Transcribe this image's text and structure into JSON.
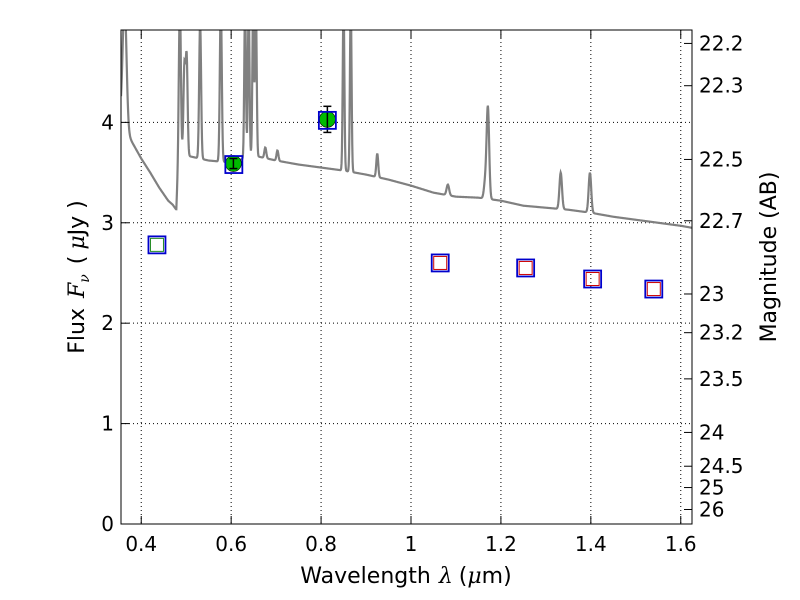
{
  "chart_data": {
    "type": "scatter",
    "xlabel_prefix": "Wavelength",
    "xlabel_symbol": "λ",
    "xlabel_unit_open": "(",
    "xlabel_unit_mu": "μ",
    "xlabel_unit_rest": "m)",
    "ylabel_prefix": "Flux",
    "ylabel_symbol": "F",
    "ylabel_symbol_sub": "ν",
    "ylabel_unit_open": "(",
    "ylabel_unit_mu": "μ",
    "ylabel_unit_rest": "Jy )",
    "y2label": "Magnitude (AB)",
    "xlim": [
      0.355,
      1.625
    ],
    "ylim": [
      0,
      4.92
    ],
    "grid": true,
    "x_ticks": [
      {
        "v": 0.4,
        "label": "0.4"
      },
      {
        "v": 0.6,
        "label": "0.6"
      },
      {
        "v": 0.8,
        "label": "0.8"
      },
      {
        "v": 1.0,
        "label": "1"
      },
      {
        "v": 1.2,
        "label": "1.2"
      },
      {
        "v": 1.4,
        "label": "1.4"
      },
      {
        "v": 1.6,
        "label": "1.6"
      }
    ],
    "y_ticks": [
      {
        "v": 0,
        "label": "0"
      },
      {
        "v": 1,
        "label": "1"
      },
      {
        "v": 2,
        "label": "2"
      },
      {
        "v": 3,
        "label": "3"
      },
      {
        "v": 4,
        "label": "4"
      }
    ],
    "mag_ticks": [
      {
        "v": 22.2,
        "label": "22.2"
      },
      {
        "v": 22.3,
        "label": "22.3"
      },
      {
        "v": 22.5,
        "label": "22.5"
      },
      {
        "v": 22.7,
        "label": "22.7"
      },
      {
        "v": 23.0,
        "label": "23"
      },
      {
        "v": 23.2,
        "label": "23.2"
      },
      {
        "v": 23.5,
        "label": "23.5"
      },
      {
        "v": 24.0,
        "label": "24"
      },
      {
        "v": 24.5,
        "label": "24.5"
      },
      {
        "v": 25.0,
        "label": "25"
      },
      {
        "v": 26.0,
        "label": "26"
      }
    ],
    "observed": [
      {
        "x": 0.605,
        "y": 3.59,
        "err": 0.05
      },
      {
        "x": 0.814,
        "y": 4.03,
        "err": 0.13
      }
    ],
    "model_photometry": [
      {
        "x": 0.435,
        "y": 2.78
      },
      {
        "x": 0.606,
        "y": 3.58
      },
      {
        "x": 0.814,
        "y": 4.02
      },
      {
        "x": 1.065,
        "y": 2.6
      },
      {
        "x": 1.255,
        "y": 2.55
      },
      {
        "x": 1.404,
        "y": 2.44
      },
      {
        "x": 1.54,
        "y": 2.34
      }
    ],
    "other_bands": [
      {
        "x": 0.435,
        "y": 2.78,
        "kind": "green"
      },
      {
        "x": 1.065,
        "y": 2.6,
        "kind": "red"
      },
      {
        "x": 1.255,
        "y": 2.55,
        "kind": "red"
      },
      {
        "x": 1.404,
        "y": 2.44,
        "kind": "red"
      },
      {
        "x": 1.54,
        "y": 2.34,
        "kind": "red"
      }
    ],
    "spectrum_continuum": [
      [
        0.355,
        4.05
      ],
      [
        0.363,
        3.95
      ],
      [
        0.38,
        3.8
      ],
      [
        0.4,
        3.64
      ],
      [
        0.42,
        3.5
      ],
      [
        0.44,
        3.35
      ],
      [
        0.46,
        3.22
      ],
      [
        0.47,
        3.18
      ],
      [
        0.478,
        3.13
      ],
      [
        0.483,
        3.7
      ],
      [
        0.5,
        3.67
      ],
      [
        0.55,
        3.62
      ],
      [
        0.6,
        3.6
      ],
      [
        0.65,
        3.67
      ],
      [
        0.7,
        3.62
      ],
      [
        0.75,
        3.58
      ],
      [
        0.8,
        3.55
      ],
      [
        0.85,
        3.52
      ],
      [
        0.9,
        3.48
      ],
      [
        0.95,
        3.43
      ],
      [
        1.0,
        3.37
      ],
      [
        1.05,
        3.3
      ],
      [
        1.1,
        3.26
      ],
      [
        1.15,
        3.25
      ],
      [
        1.2,
        3.22
      ],
      [
        1.25,
        3.17
      ],
      [
        1.3,
        3.15
      ],
      [
        1.35,
        3.13
      ],
      [
        1.4,
        3.1
      ],
      [
        1.45,
        3.06
      ],
      [
        1.5,
        3.03
      ],
      [
        1.55,
        3.0
      ],
      [
        1.6,
        2.97
      ],
      [
        1.625,
        2.95
      ]
    ],
    "spectrum_lines": [
      {
        "x": 0.363,
        "peak": 5.2,
        "w": 0.006
      },
      {
        "x": 0.486,
        "peak": 5.2,
        "w": 0.003
      },
      {
        "x": 0.496,
        "peak": 4.55,
        "w": 0.003
      },
      {
        "x": 0.501,
        "peak": 4.65,
        "w": 0.003
      },
      {
        "x": 0.531,
        "peak": 5.0,
        "w": 0.003
      },
      {
        "x": 0.577,
        "peak": 5.2,
        "w": 0.003
      },
      {
        "x": 0.631,
        "peak": 5.2,
        "w": 0.0025
      },
      {
        "x": 0.639,
        "peak": 5.2,
        "w": 0.0025
      },
      {
        "x": 0.649,
        "peak": 5.2,
        "w": 0.0025
      },
      {
        "x": 0.655,
        "peak": 5.2,
        "w": 0.0025
      },
      {
        "x": 0.676,
        "peak": 3.75,
        "w": 0.003
      },
      {
        "x": 0.703,
        "peak": 3.72,
        "w": 0.003
      },
      {
        "x": 0.85,
        "peak": 5.2,
        "w": 0.0025
      },
      {
        "x": 0.866,
        "peak": 5.2,
        "w": 0.0025
      },
      {
        "x": 0.925,
        "peak": 3.69,
        "w": 0.003
      },
      {
        "x": 1.082,
        "peak": 3.38,
        "w": 0.004
      },
      {
        "x": 1.165,
        "peak": 3.4,
        "w": 0.004
      },
      {
        "x": 1.171,
        "peak": 4.15,
        "w": 0.004
      },
      {
        "x": 1.333,
        "peak": 3.5,
        "w": 0.004
      },
      {
        "x": 1.398,
        "peak": 3.5,
        "w": 0.004
      }
    ],
    "colors": {
      "spectrum": "#808080",
      "observed": "#00bb00",
      "model_square": "#0000cc",
      "green_square": "#228b22",
      "red_square": "#cc0000",
      "grid": "#000000"
    }
  }
}
